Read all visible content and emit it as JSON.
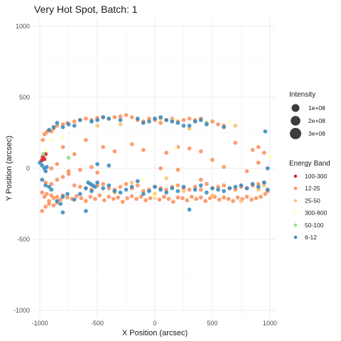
{
  "chart_data": {
    "type": "scatter",
    "title": "Very Hot Spot, Batch: 1",
    "xlabel": "X Position (arcsec)",
    "ylabel": "Y Position (arcsec)",
    "xlim": [
      -1050,
      1050
    ],
    "ylim": [
      -1050,
      1050
    ],
    "xticks": [
      -1000,
      -500,
      0,
      500,
      1000
    ],
    "yticks": [
      -1000,
      -500,
      0,
      500,
      1000
    ],
    "grid": true,
    "legend_position": "right",
    "size_legend": {
      "title": "Intensity",
      "entries": [
        {
          "label": "1e+08",
          "value": 100000000
        },
        {
          "label": "2e+08",
          "value": 200000000
        },
        {
          "label": "3e+08",
          "value": 300000000
        }
      ]
    },
    "color_legend": {
      "title": "Energy Band",
      "entries": [
        {
          "label": "100-300",
          "color": "#d7191c"
        },
        {
          "label": "12-25",
          "color": "#fc8d59"
        },
        {
          "label": "25-50",
          "color": "#fdbf6f"
        },
        {
          "label": "300-800",
          "color": "#ffffbf"
        },
        {
          "label": "50-100",
          "color": "#99d594"
        },
        {
          "label": "6-12",
          "color": "#3288bd"
        }
      ]
    },
    "series": [
      {
        "name": "100-300",
        "points": [
          [
            -975,
            80
          ],
          [
            -950,
            100
          ],
          [
            -985,
            55
          ],
          [
            -960,
            65
          ]
        ]
      },
      {
        "name": "12-25",
        "points": [
          [
            -975,
            200
          ],
          [
            -960,
            240
          ],
          [
            -940,
            255
          ],
          [
            -920,
            270
          ],
          [
            -900,
            260
          ],
          [
            -880,
            280
          ],
          [
            -850,
            300
          ],
          [
            -800,
            310
          ],
          [
            -760,
            320
          ],
          [
            -700,
            330
          ],
          [
            -650,
            340
          ],
          [
            -600,
            350
          ],
          [
            -550,
            340
          ],
          [
            -500,
            355
          ],
          [
            -450,
            360
          ],
          [
            -400,
            350
          ],
          [
            -350,
            360
          ],
          [
            -300,
            365
          ],
          [
            -250,
            375
          ],
          [
            -200,
            360
          ],
          [
            -150,
            340
          ],
          [
            -100,
            330
          ],
          [
            -50,
            350
          ],
          [
            0,
            340
          ],
          [
            50,
            320
          ],
          [
            100,
            340
          ],
          [
            150,
            350
          ],
          [
            200,
            330
          ],
          [
            250,
            340
          ],
          [
            300,
            350
          ],
          [
            350,
            340
          ],
          [
            400,
            350
          ],
          [
            450,
            320
          ],
          [
            500,
            330
          ],
          [
            550,
            310
          ],
          [
            600,
            300
          ],
          [
            -980,
            -170
          ],
          [
            -960,
            -200
          ],
          [
            -940,
            -180
          ],
          [
            -920,
            -230
          ],
          [
            -900,
            -190
          ],
          [
            -880,
            -210
          ],
          [
            -850,
            -200
          ],
          [
            -820,
            -220
          ],
          [
            -800,
            -190
          ],
          [
            -760,
            -205
          ],
          [
            -720,
            -215
          ],
          [
            -680,
            -195
          ],
          [
            -640,
            -210
          ],
          [
            -600,
            -230
          ],
          [
            -560,
            -200
          ],
          [
            -520,
            -215
          ],
          [
            -480,
            -190
          ],
          [
            -440,
            -225
          ],
          [
            -400,
            -200
          ],
          [
            -360,
            -215
          ],
          [
            -320,
            -205
          ],
          [
            -280,
            -235
          ],
          [
            -240,
            -210
          ],
          [
            -200,
            -195
          ],
          [
            -160,
            -215
          ],
          [
            -120,
            -200
          ],
          [
            -80,
            -225
          ],
          [
            -40,
            -210
          ],
          [
            0,
            -205
          ],
          [
            40,
            -220
          ],
          [
            80,
            -200
          ],
          [
            120,
            -215
          ],
          [
            160,
            -235
          ],
          [
            200,
            -205
          ],
          [
            240,
            -210
          ],
          [
            280,
            -225
          ],
          [
            320,
            -200
          ],
          [
            360,
            -215
          ],
          [
            400,
            -205
          ],
          [
            440,
            -230
          ],
          [
            480,
            -210
          ],
          [
            520,
            -200
          ],
          [
            560,
            -220
          ],
          [
            600,
            -205
          ],
          [
            640,
            -215
          ],
          [
            680,
            -230
          ],
          [
            720,
            -205
          ],
          [
            760,
            -215
          ],
          [
            800,
            -200
          ],
          [
            840,
            -220
          ],
          [
            880,
            -210
          ],
          [
            920,
            -200
          ],
          [
            960,
            -180
          ],
          [
            980,
            -160
          ],
          [
            -950,
            -100
          ],
          [
            -900,
            -110
          ],
          [
            -850,
            -80
          ],
          [
            -800,
            -60
          ],
          [
            -750,
            -40
          ],
          [
            -700,
            -120
          ],
          [
            -650,
            -130
          ],
          [
            -600,
            -140
          ],
          [
            -550,
            -150
          ],
          [
            -500,
            -120
          ],
          [
            -450,
            -110
          ],
          [
            -400,
            -140
          ],
          [
            -350,
            -150
          ],
          [
            -300,
            -130
          ],
          [
            -250,
            -110
          ],
          [
            -200,
            -140
          ],
          [
            -150,
            -120
          ],
          [
            -100,
            -160
          ],
          [
            -50,
            -150
          ],
          [
            0,
            -130
          ],
          [
            50,
            -140
          ],
          [
            100,
            -150
          ],
          [
            150,
            -130
          ],
          [
            200,
            -120
          ],
          [
            250,
            -140
          ],
          [
            300,
            -150
          ],
          [
            350,
            -130
          ],
          [
            400,
            -150
          ],
          [
            450,
            -110
          ],
          [
            500,
            -140
          ],
          [
            550,
            -130
          ],
          [
            600,
            -120
          ],
          [
            650,
            -140
          ],
          [
            700,
            -150
          ],
          [
            750,
            -130
          ],
          [
            800,
            -140
          ],
          [
            850,
            -120
          ],
          [
            900,
            -110
          ],
          [
            950,
            -100
          ],
          [
            -800,
            150
          ],
          [
            -700,
            100
          ],
          [
            -600,
            200
          ],
          [
            -450,
            150
          ],
          [
            -350,
            120
          ],
          [
            -200,
            170
          ],
          [
            -100,
            130
          ],
          [
            100,
            110
          ],
          [
            200,
            150
          ],
          [
            300,
            140
          ],
          [
            400,
            120
          ],
          [
            500,
            60
          ],
          [
            700,
            180
          ],
          [
            850,
            130
          ],
          [
            900,
            150
          ],
          [
            950,
            110
          ],
          [
            -900,
            0
          ],
          [
            -850,
            30
          ],
          [
            -750,
            -20
          ],
          [
            -650,
            -10
          ],
          [
            -550,
            10
          ],
          [
            -500,
            -30
          ],
          [
            50,
            0
          ],
          [
            200,
            -10
          ],
          [
            400,
            -80
          ],
          [
            600,
            10
          ],
          [
            800,
            -20
          ],
          [
            900,
            40
          ],
          [
            -980,
            -300
          ],
          [
            -950,
            -270
          ],
          [
            -920,
            -250
          ],
          [
            -880,
            -260
          ],
          [
            -850,
            -240
          ]
        ]
      },
      {
        "name": "25-50",
        "points": [
          [
            -500,
            300
          ],
          [
            -300,
            310
          ],
          [
            50,
            350
          ],
          [
            150,
            340
          ],
          [
            300,
            280
          ],
          [
            450,
            320
          ],
          [
            700,
            300
          ],
          [
            -350,
            -170
          ],
          [
            0,
            -180
          ],
          [
            250,
            -160
          ],
          [
            500,
            -190
          ],
          [
            750,
            -230
          ],
          [
            900,
            -150
          ],
          [
            950,
            -120
          ],
          [
            -200,
            -100
          ],
          [
            100,
            -70
          ]
        ]
      },
      {
        "name": "300-800",
        "points": [
          [
            -900,
            200
          ],
          [
            650,
            330
          ],
          [
            180,
            145
          ],
          [
            -100,
            -80
          ],
          [
            -800,
            220
          ],
          [
            -950,
            130
          ],
          [
            0,
            -200
          ],
          [
            1000,
            80
          ]
        ]
      },
      {
        "name": "50-100",
        "points": [
          [
            -750,
            75
          ],
          [
            450,
            320
          ],
          [
            -970,
            100
          ]
        ]
      },
      {
        "name": "6-12",
        "points": [
          [
            -920,
            270
          ],
          [
            -880,
            290
          ],
          [
            -850,
            320
          ],
          [
            -800,
            290
          ],
          [
            -750,
            310
          ],
          [
            -700,
            300
          ],
          [
            -650,
            340
          ],
          [
            -550,
            330
          ],
          [
            -500,
            340
          ],
          [
            -450,
            360
          ],
          [
            -400,
            350
          ],
          [
            -300,
            340
          ],
          [
            -150,
            350
          ],
          [
            -100,
            320
          ],
          [
            -50,
            330
          ],
          [
            0,
            350
          ],
          [
            50,
            360
          ],
          [
            100,
            340
          ],
          [
            150,
            330
          ],
          [
            200,
            320
          ],
          [
            250,
            300
          ],
          [
            300,
            300
          ],
          [
            350,
            330
          ],
          [
            400,
            340
          ],
          [
            450,
            310
          ],
          [
            600,
            290
          ],
          [
            -1000,
            40
          ],
          [
            -980,
            20
          ],
          [
            -960,
            0
          ],
          [
            -950,
            -20
          ],
          [
            -940,
            10
          ],
          [
            -980,
            -80
          ],
          [
            -950,
            -120
          ],
          [
            -920,
            -130
          ],
          [
            -900,
            -150
          ],
          [
            -850,
            -230
          ],
          [
            -820,
            -250
          ],
          [
            -800,
            -200
          ],
          [
            -760,
            -180
          ],
          [
            -700,
            -220
          ],
          [
            -650,
            -180
          ],
          [
            -600,
            -140
          ],
          [
            -580,
            -100
          ],
          [
            -560,
            -110
          ],
          [
            -540,
            -120
          ],
          [
            -520,
            -130
          ],
          [
            -500,
            -100
          ],
          [
            -450,
            -140
          ],
          [
            -400,
            -120
          ],
          [
            -350,
            -160
          ],
          [
            -300,
            -170
          ],
          [
            -250,
            -150
          ],
          [
            -200,
            -130
          ],
          [
            -150,
            -90
          ],
          [
            -100,
            -180
          ],
          [
            -50,
            -160
          ],
          [
            0,
            -130
          ],
          [
            50,
            -150
          ],
          [
            100,
            -170
          ],
          [
            150,
            -140
          ],
          [
            200,
            -160
          ],
          [
            250,
            -130
          ],
          [
            300,
            -290
          ],
          [
            350,
            -150
          ],
          [
            400,
            -120
          ],
          [
            450,
            -170
          ],
          [
            500,
            -140
          ],
          [
            550,
            -150
          ],
          [
            600,
            -160
          ],
          [
            650,
            -140
          ],
          [
            700,
            -130
          ],
          [
            750,
            -120
          ],
          [
            800,
            -140
          ],
          [
            850,
            -110
          ],
          [
            900,
            -130
          ],
          [
            950,
            -100
          ],
          [
            980,
            -150
          ],
          [
            960,
            260
          ],
          [
            980,
            0
          ],
          [
            -800,
            -310
          ],
          [
            -500,
            30
          ],
          [
            -400,
            20
          ],
          [
            -550,
            -160
          ],
          [
            -600,
            -300
          ]
        ]
      }
    ]
  }
}
